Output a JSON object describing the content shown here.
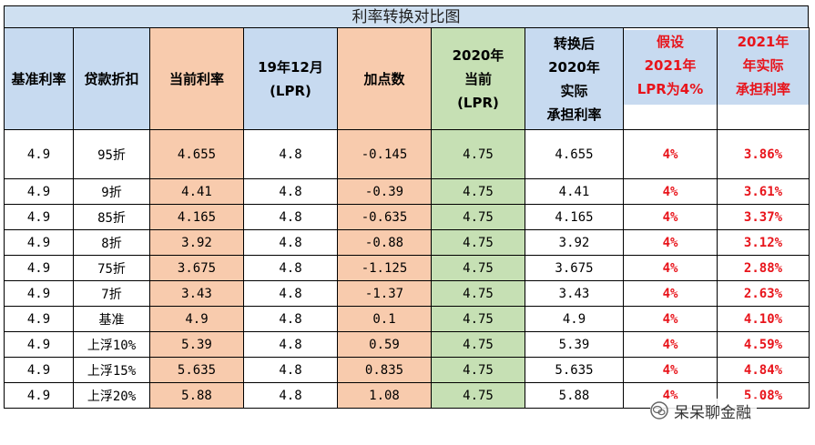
{
  "title": "利率转换对比图",
  "headers": [
    {
      "lines": [
        "基准利率"
      ]
    },
    {
      "lines": [
        "贷款折扣"
      ]
    },
    {
      "lines": [
        "当前利率"
      ]
    },
    {
      "lines": [
        "19年12月",
        "(LPR)"
      ]
    },
    {
      "lines": [
        "加点数"
      ]
    },
    {
      "lines": [
        "2020年",
        "当前",
        "(LPR)"
      ]
    },
    {
      "lines": [
        "转换后",
        "2020年",
        "实际",
        "承担利率"
      ]
    },
    {
      "lines": [
        "假设",
        "2021年",
        "LPR为4%"
      ]
    },
    {
      "lines": [
        "2021年",
        "年实际",
        "承担利率"
      ]
    }
  ],
  "rows": [
    {
      "base": "4.9",
      "discount": "95折",
      "current": "4.655",
      "lpr2019": "4.8",
      "spread": "-0.145",
      "lpr2020": "4.75",
      "converted": "4.655",
      "lpr2021": "4%",
      "rate2021": "3.86%"
    },
    {
      "base": "4.9",
      "discount": "9折",
      "current": "4.41",
      "lpr2019": "4.8",
      "spread": "-0.39",
      "lpr2020": "4.75",
      "converted": "4.41",
      "lpr2021": "4%",
      "rate2021": "3.61%"
    },
    {
      "base": "4.9",
      "discount": "85折",
      "current": "4.165",
      "lpr2019": "4.8",
      "spread": "-0.635",
      "lpr2020": "4.75",
      "converted": "4.165",
      "lpr2021": "4%",
      "rate2021": "3.37%"
    },
    {
      "base": "4.9",
      "discount": "8折",
      "current": "3.92",
      "lpr2019": "4.8",
      "spread": "-0.88",
      "lpr2020": "4.75",
      "converted": "3.92",
      "lpr2021": "4%",
      "rate2021": "3.12%"
    },
    {
      "base": "4.9",
      "discount": "75折",
      "current": "3.675",
      "lpr2019": "4.8",
      "spread": "-1.125",
      "lpr2020": "4.75",
      "converted": "3.675",
      "lpr2021": "4%",
      "rate2021": "2.88%"
    },
    {
      "base": "4.9",
      "discount": "7折",
      "current": "3.43",
      "lpr2019": "4.8",
      "spread": "-1.37",
      "lpr2020": "4.75",
      "converted": "3.43",
      "lpr2021": "4%",
      "rate2021": "2.63%"
    },
    {
      "base": "4.9",
      "discount": "基准",
      "current": "4.9",
      "lpr2019": "4.8",
      "spread": "0.1",
      "lpr2020": "4.75",
      "converted": "4.9",
      "lpr2021": "4%",
      "rate2021": "4.10%"
    },
    {
      "base": "4.9",
      "discount": "上浮10%",
      "current": "5.39",
      "lpr2019": "4.8",
      "spread": "0.59",
      "lpr2020": "4.75",
      "converted": "5.39",
      "lpr2021": "4%",
      "rate2021": "4.59%"
    },
    {
      "base": "4.9",
      "discount": "上浮15%",
      "current": "5.635",
      "lpr2019": "4.8",
      "spread": "0.835",
      "lpr2020": "4.75",
      "converted": "5.635",
      "lpr2021": "4%",
      "rate2021": "4.84%"
    },
    {
      "base": "4.9",
      "discount": "上浮20%",
      "current": "5.88",
      "lpr2019": "4.8",
      "spread": "1.08",
      "lpr2020": "4.75",
      "converted": "5.88",
      "lpr2021": "4%",
      "rate2021": "5.08%"
    }
  ],
  "watermark": {
    "text": "呆呆聊金融",
    "icon": "wechat-icon"
  },
  "colors": {
    "blue": "#c7daf0",
    "peach": "#f8cbad",
    "green": "#c6e0b4",
    "red": "#e8141b"
  }
}
